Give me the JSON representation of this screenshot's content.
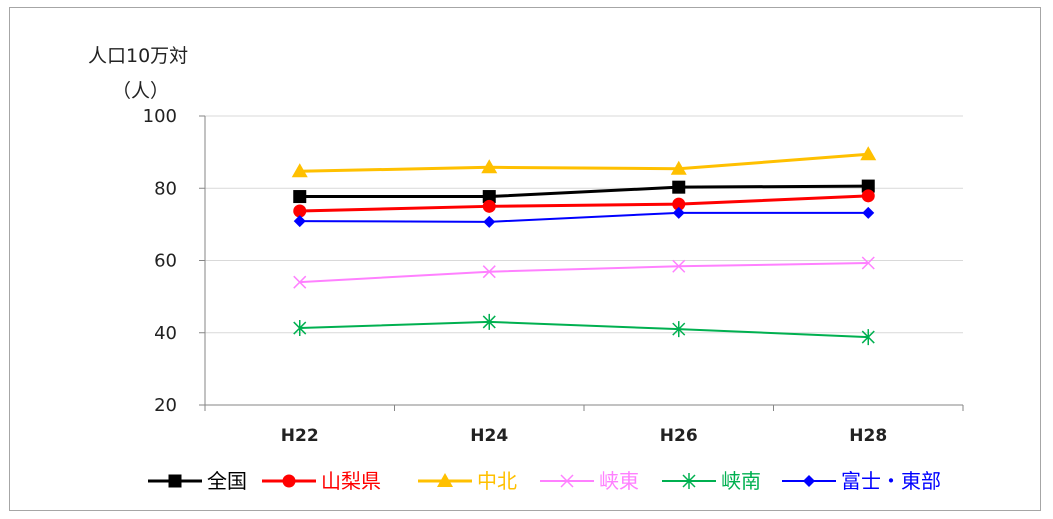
{
  "chart_data": {
    "type": "line",
    "title": "",
    "ylabel_line1": "人口10万対",
    "ylabel_line2": "（人）",
    "xlabel": "",
    "categories": [
      "H22",
      "H24",
      "H26",
      "H28"
    ],
    "ylim": [
      20,
      100
    ],
    "yticks": [
      20,
      40,
      60,
      80,
      100
    ],
    "grid": true,
    "legend_position": "bottom",
    "series": [
      {
        "name": "全国",
        "values": [
          77.7,
          77.7,
          80.3,
          80.6
        ],
        "color": "#000000",
        "marker": "square"
      },
      {
        "name": "山梨県",
        "values": [
          73.7,
          75.0,
          75.6,
          77.9
        ],
        "color": "#ff0000",
        "marker": "circle"
      },
      {
        "name": "中北",
        "values": [
          84.7,
          85.8,
          85.4,
          89.4
        ],
        "color": "#ffc000",
        "marker": "triangle"
      },
      {
        "name": "峡東",
        "values": [
          54.0,
          56.9,
          58.4,
          59.3
        ],
        "color": "#ff80ff",
        "marker": "x"
      },
      {
        "name": "峡南",
        "values": [
          41.3,
          43.0,
          41.0,
          38.8
        ],
        "color": "#00b050",
        "marker": "star"
      },
      {
        "name": "富士・東部",
        "values": [
          70.9,
          70.7,
          73.2,
          73.2
        ],
        "color": "#0000ff",
        "marker": "diamond"
      }
    ]
  }
}
